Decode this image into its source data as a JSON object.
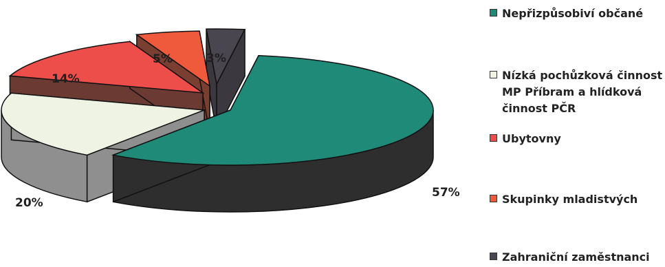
{
  "chart_data": {
    "type": "pie",
    "style": "3d-exploded",
    "title": "",
    "legend_position": "right",
    "series": [
      {
        "name": "Nepřizpůsobiví občané",
        "value": 57,
        "label": "57%",
        "color": "#1f8a78",
        "side_color": "#2e2e2e"
      },
      {
        "name": "Nízká pochůzková činnost MP Příbram a hlídková činnost PČR",
        "value": 20,
        "label": "20%",
        "color": "#eef3e3",
        "side_color": "#8f8f8f"
      },
      {
        "name": "Ubytovny",
        "value": 14,
        "label": "14%",
        "color": "#ee4e4a",
        "side_color": "#6b3a33"
      },
      {
        "name": "Skupinky mladistvých",
        "value": 5,
        "label": "5%",
        "color": "#ef5a3c",
        "side_color": "#7a3f31"
      },
      {
        "name": "Zahraniční zaměstnanci",
        "value": 3,
        "label": "3%",
        "color": "#4a4650",
        "side_color": "#3b383f"
      }
    ]
  },
  "legend": {
    "items": [
      {
        "label_lines": [
          "Nepřizpůsobiví občané"
        ],
        "color": "#1f8a78"
      },
      {
        "label_lines": [
          "Nízká pochůzková činnost",
          "MP Příbram a hlídková",
          "činnost PČR"
        ],
        "color": "#eef3e3"
      },
      {
        "label_lines": [
          "Ubytovny"
        ],
        "color": "#ee4e4a"
      },
      {
        "label_lines": [
          "Skupinky mladistvých"
        ],
        "color": "#ef5a3c"
      },
      {
        "label_lines": [
          "Zahraniční zaměstnanci"
        ],
        "color": "#4a4650"
      }
    ]
  }
}
